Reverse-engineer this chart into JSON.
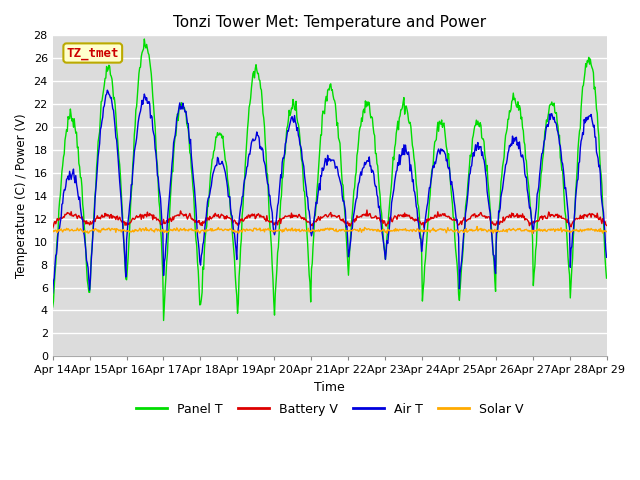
{
  "title": "Tonzi Tower Met: Temperature and Power",
  "xlabel": "Time",
  "ylabel": "Temperature (C) / Power (V)",
  "plot_bg_color": "#dcdcdc",
  "ylim": [
    0,
    28
  ],
  "yticks": [
    0,
    2,
    4,
    6,
    8,
    10,
    12,
    14,
    16,
    18,
    20,
    22,
    24,
    26,
    28
  ],
  "x_labels": [
    "Apr 14",
    "Apr 15",
    "Apr 16",
    "Apr 17",
    "Apr 18",
    "Apr 19",
    "Apr 20",
    "Apr 21",
    "Apr 22",
    "Apr 23",
    "Apr 24",
    "Apr 25",
    "Apr 26",
    "Apr 27",
    "Apr 28",
    "Apr 29"
  ],
  "panel_color": "#00dd00",
  "battery_color": "#dd0000",
  "air_color": "#0000dd",
  "solar_color": "#ffaa00",
  "annotation_text": "TZ_tmet",
  "annotation_color": "#cc0000",
  "annotation_bg": "#ffffcc",
  "annotation_border": "#bbaa00",
  "panel_peaks": [
    21.0,
    25.0,
    27.2,
    22.0,
    19.5,
    25.0,
    22.0,
    23.5,
    22.0,
    22.0,
    20.5,
    20.5,
    22.5,
    22.0,
    26.0
  ],
  "panel_troughs": [
    3.8,
    5.5,
    6.0,
    3.5,
    4.2,
    3.8,
    4.0,
    7.5,
    8.0,
    8.5,
    4.5,
    4.8,
    9.8,
    6.0,
    5.0
  ],
  "air_peaks": [
    16.0,
    23.0,
    22.5,
    22.0,
    17.0,
    19.0,
    20.5,
    17.5,
    17.0,
    18.0,
    18.0,
    18.5,
    19.0,
    21.0,
    21.0
  ],
  "air_troughs": [
    6.0,
    6.0,
    10.0,
    7.0,
    8.0,
    10.5,
    10.5,
    10.5,
    8.5,
    8.5,
    10.0,
    6.0,
    10.5,
    10.5,
    8.0
  ],
  "battery_base": 11.5,
  "battery_bump": 1.2,
  "solar_base": 10.9,
  "solar_bump": 0.3,
  "n_days": 15,
  "n_per_day": 48
}
